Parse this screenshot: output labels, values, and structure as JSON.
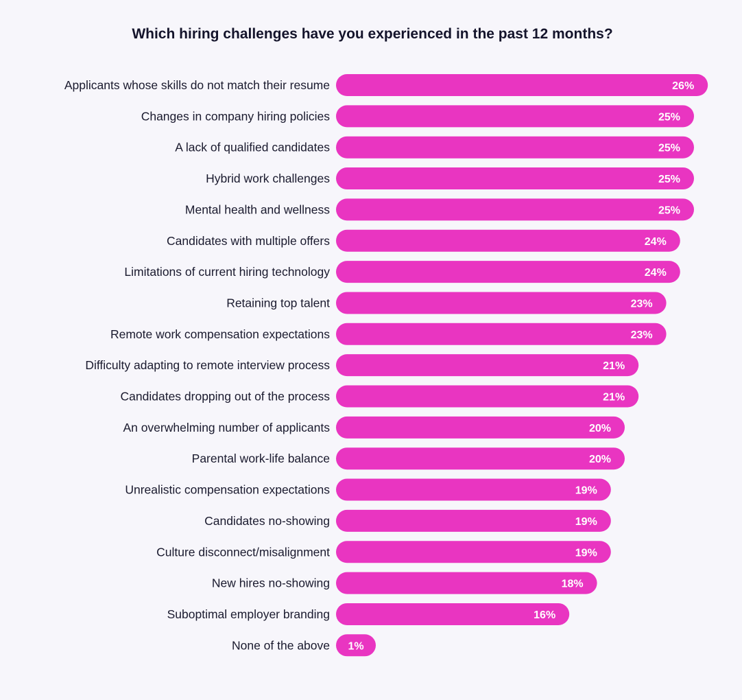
{
  "chart_data": {
    "type": "bar",
    "orientation": "horizontal",
    "title": "Which hiring challenges have you experienced in the past 12 months?",
    "bar_color": "#e935c1",
    "value_label_color": "#ffffff",
    "background_color": "#f7f6fb",
    "value_suffix": "%",
    "grid": false,
    "legend": "none",
    "xlim": [
      0,
      26
    ],
    "categories": [
      "Applicants whose skills do not match their resume",
      "Changes in company hiring policies",
      "A lack of qualified candidates",
      "Hybrid work challenges",
      "Mental health and wellness",
      "Candidates with multiple offers",
      "Limitations of current hiring technology",
      "Retaining top talent",
      "Remote work compensation expectations",
      "Difficulty adapting to remote interview process",
      "Candidates dropping out of the process",
      "An overwhelming number of applicants",
      "Parental work-life balance",
      "Unrealistic compensation expectations",
      "Candidates no-showing",
      "Culture disconnect/misalignment",
      "New hires no-showing",
      "Suboptimal employer branding",
      "None of the above"
    ],
    "values": [
      26,
      25,
      25,
      25,
      25,
      24,
      24,
      23,
      23,
      21,
      21,
      20,
      20,
      19,
      19,
      19,
      18,
      16,
      1
    ]
  }
}
